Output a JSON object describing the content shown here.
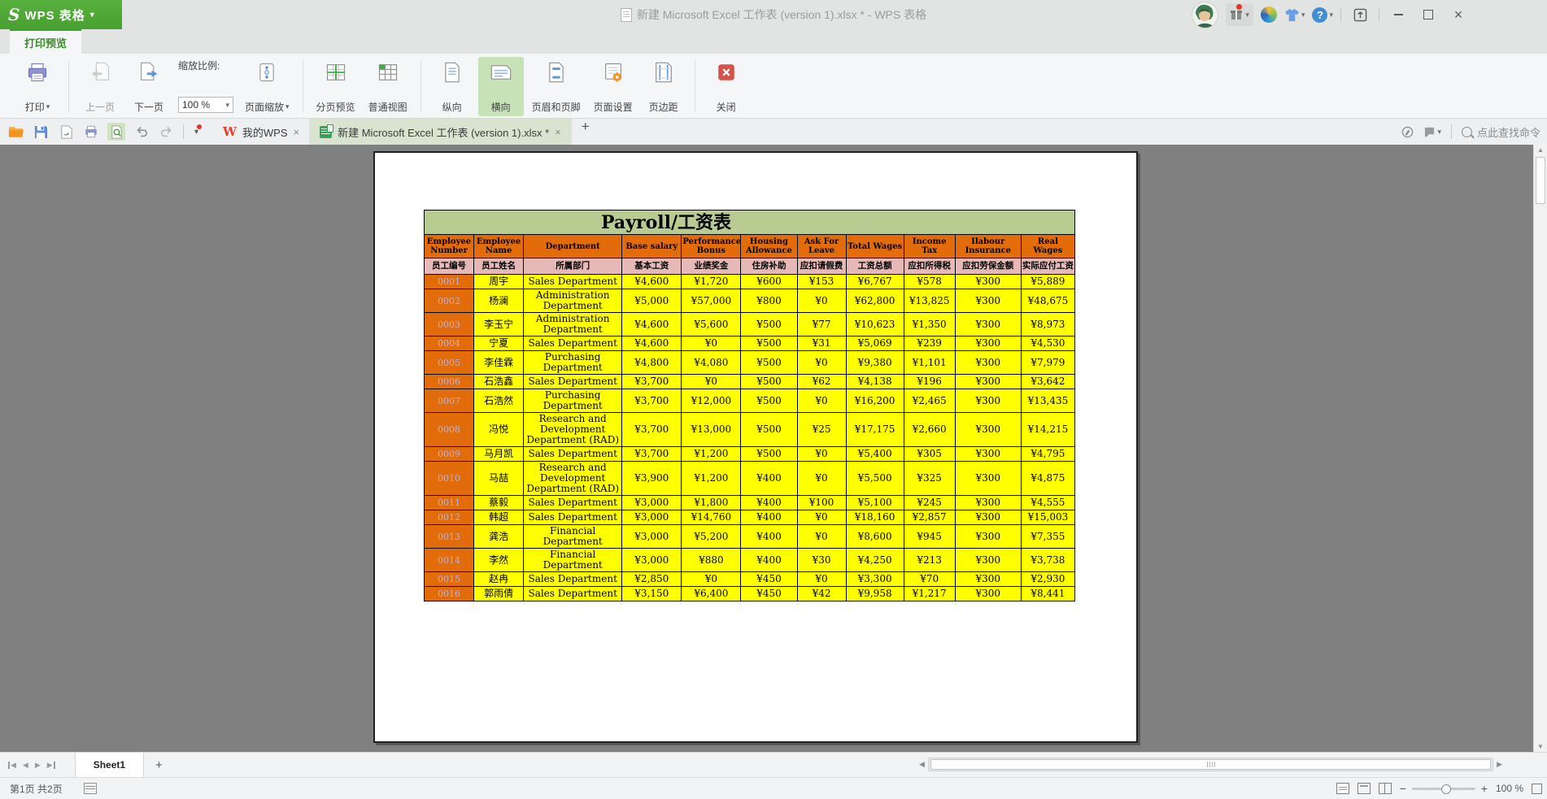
{
  "titlebar": {
    "logo_s": "S",
    "logo_text": "WPS 表格",
    "title": "新建 Microsoft Excel 工作表 (version 1).xlsx * - WPS 表格"
  },
  "ribbon": {
    "active_tab": "打印预览",
    "print": "打印",
    "prev_page": "上一页",
    "next_page": "下一页",
    "zoom_label": "缩放比例:",
    "zoom_value": "100 %",
    "page_zoom": "页面缩放",
    "page_break_preview": "分页预览",
    "normal_view": "普通视图",
    "portrait": "纵向",
    "landscape": "横向",
    "header_footer": "页眉和页脚",
    "page_setup": "页面设置",
    "margins": "页边距",
    "close": "关闭"
  },
  "tabbar": {
    "home_tab": "我的WPS",
    "doc_tab": "新建 Microsoft Excel 工作表 (version 1).xlsx *",
    "find_hint": "点此查找命令"
  },
  "sheetbar": {
    "sheet1": "Sheet1"
  },
  "statusbar": {
    "page_info": "第1页 共2页",
    "zoom": "100 %"
  },
  "glyphs": {
    "caret": "▾",
    "close_x": "×",
    "plus": "+",
    "minus": "−",
    "left": "◀",
    "right": "▶",
    "up": "▲",
    "down": "▼",
    "help": "?"
  },
  "colors": {
    "accent_green": "#44a231",
    "header_orange": "#e26b0a",
    "header_pink": "#e6b9b8",
    "cell_yellow": "#ffff00",
    "title_green": "#b8cc92"
  },
  "payroll": {
    "title": "Payroll/工资表",
    "headers_en": [
      "Employee Number",
      "Employee Name",
      "Department",
      "Base salary",
      "Performance Bonus",
      "Housing Allowance",
      "Ask For Leave",
      "Total Wages",
      "Income Tax",
      "Ilabour Insurance",
      "Real Wages"
    ],
    "headers_zh": [
      "员工编号",
      "员工姓名",
      "所属部门",
      "基本工资",
      "业绩奖金",
      "住房补助",
      "应扣请假费",
      "工资总额",
      "应扣所得税",
      "应扣劳保金额",
      "实际应付工资"
    ],
    "rows": [
      [
        "0001",
        "周宇",
        "Sales Department",
        "¥4,600",
        "¥1,720",
        "¥600",
        "¥153",
        "¥6,767",
        "¥578",
        "¥300",
        "¥5,889"
      ],
      [
        "0002",
        "杨澜",
        "Administration Department",
        "¥5,000",
        "¥57,000",
        "¥800",
        "¥0",
        "¥62,800",
        "¥13,825",
        "¥300",
        "¥48,675"
      ],
      [
        "0003",
        "李玉宁",
        "Administration Department",
        "¥4,600",
        "¥5,600",
        "¥500",
        "¥77",
        "¥10,623",
        "¥1,350",
        "¥300",
        "¥8,973"
      ],
      [
        "0004",
        "宁夏",
        "Sales Department",
        "¥4,600",
        "¥0",
        "¥500",
        "¥31",
        "¥5,069",
        "¥239",
        "¥300",
        "¥4,530"
      ],
      [
        "0005",
        "李佳霖",
        "Purchasing Department",
        "¥4,800",
        "¥4,080",
        "¥500",
        "¥0",
        "¥9,380",
        "¥1,101",
        "¥300",
        "¥7,979"
      ],
      [
        "0006",
        "石浩鑫",
        "Sales Department",
        "¥3,700",
        "¥0",
        "¥500",
        "¥62",
        "¥4,138",
        "¥196",
        "¥300",
        "¥3,642"
      ],
      [
        "0007",
        "石浩然",
        "Purchasing Department",
        "¥3,700",
        "¥12,000",
        "¥500",
        "¥0",
        "¥16,200",
        "¥2,465",
        "¥300",
        "¥13,435"
      ],
      [
        "0008",
        "冯悦",
        "Research and Development Department (RAD)",
        "¥3,700",
        "¥13,000",
        "¥500",
        "¥25",
        "¥17,175",
        "¥2,660",
        "¥300",
        "¥14,215"
      ],
      [
        "0009",
        "马月凯",
        "Sales Department",
        "¥3,700",
        "¥1,200",
        "¥500",
        "¥0",
        "¥5,400",
        "¥305",
        "¥300",
        "¥4,795"
      ],
      [
        "0010",
        "马喆",
        "Research and Development Department (RAD)",
        "¥3,900",
        "¥1,200",
        "¥400",
        "¥0",
        "¥5,500",
        "¥325",
        "¥300",
        "¥4,875"
      ],
      [
        "0011",
        "蔡毅",
        "Sales Department",
        "¥3,000",
        "¥1,800",
        "¥400",
        "¥100",
        "¥5,100",
        "¥245",
        "¥300",
        "¥4,555"
      ],
      [
        "0012",
        "韩超",
        "Sales Department",
        "¥3,000",
        "¥14,760",
        "¥400",
        "¥0",
        "¥18,160",
        "¥2,857",
        "¥300",
        "¥15,003"
      ],
      [
        "0013",
        "龚浩",
        "Financial Department",
        "¥3,000",
        "¥5,200",
        "¥400",
        "¥0",
        "¥8,600",
        "¥945",
        "¥300",
        "¥7,355"
      ],
      [
        "0014",
        "李然",
        "Financial Department",
        "¥3,000",
        "¥880",
        "¥400",
        "¥30",
        "¥4,250",
        "¥213",
        "¥300",
        "¥3,738"
      ],
      [
        "0015",
        "赵冉",
        "Sales Department",
        "¥2,850",
        "¥0",
        "¥450",
        "¥0",
        "¥3,300",
        "¥70",
        "¥300",
        "¥2,930"
      ],
      [
        "0016",
        "郭雨倩",
        "Sales Department",
        "¥3,150",
        "¥6,400",
        "¥450",
        "¥42",
        "¥9,958",
        "¥1,217",
        "¥300",
        "¥8,441"
      ]
    ]
  }
}
